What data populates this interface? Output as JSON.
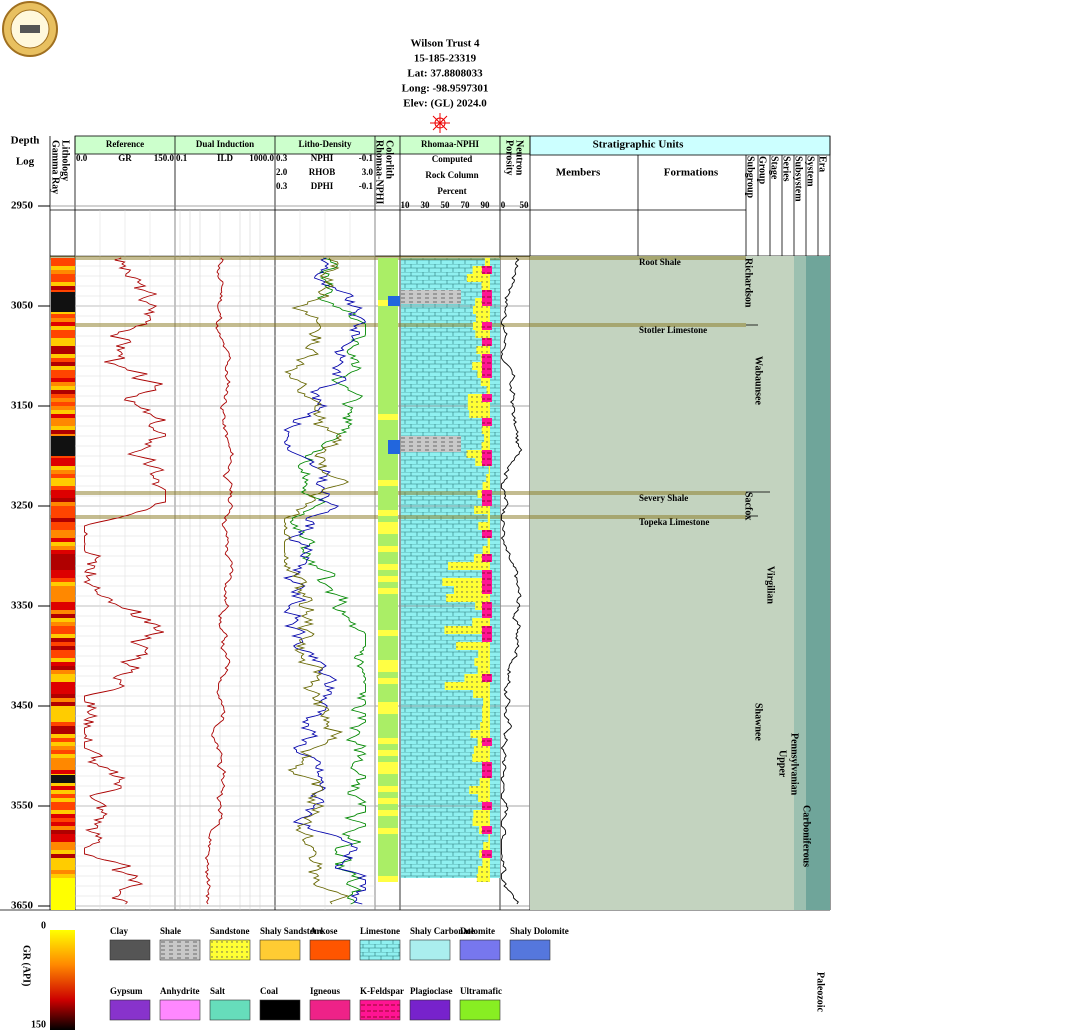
{
  "header": {
    "title": "Wilson Trust 4",
    "api": "15-185-23319",
    "lat": "Lat: 37.8808033",
    "long": "Long: -98.9597301",
    "elev": "Elev: (GL) 2024.0"
  },
  "depth": {
    "label": "Depth",
    "sublabel": "Log",
    "marks": [
      2950,
      3050,
      3150,
      3250,
      3350,
      3450,
      3550,
      3650
    ]
  },
  "tracks": {
    "lithology": "Lithology",
    "gamma": "Gamma Ray",
    "reference": {
      "title": "Reference",
      "left": "0.0",
      "curve": "GR",
      "right": "150.0"
    },
    "induction": {
      "title": "Dual Induction",
      "left": "0.1",
      "curve": "ILD",
      "right": "1000.0"
    },
    "density": {
      "title": "Litho-Density",
      "rows": [
        [
          "0.3",
          "NPHI",
          "-0.1"
        ],
        [
          "2.0",
          "RHOB",
          "3.0"
        ],
        [
          "0.3",
          "DPHI",
          "-0.1"
        ]
      ]
    },
    "colorlith": "Colorlith",
    "colorlith_sub": "Rhomaa-NPHI",
    "rhomaa": {
      "title": "Rhomaa-NPHI",
      "lines": [
        "Computed",
        "Rock Column",
        "Percent"
      ],
      "scale": [
        "10",
        "30",
        "50",
        "70",
        "90"
      ]
    },
    "neutron": {
      "title": "Neutron",
      "sub": "Porosity",
      "scale": [
        "0",
        "50"
      ]
    }
  },
  "strat": {
    "title": "Stratigraphic Units",
    "members": "Members",
    "formations": "Formations",
    "columns": [
      "Subgroup",
      "Group",
      "Stage",
      "Series",
      "Subsystem",
      "System",
      "Era"
    ],
    "formation_names": [
      "Root Shale",
      "Stotler Limestone",
      "Severy Shale",
      "Topeka Limestone"
    ],
    "units": [
      "Richardson",
      "Wabaunsee",
      "Sacfox",
      "Virgilian",
      "Shawnee",
      "Upper",
      "Pennsylvanian",
      "Carboniferous",
      "Paleozoic"
    ]
  },
  "legend": {
    "scale_title": "GR (API)",
    "scale_min": "0",
    "scale_max": "150",
    "items": [
      "Clay",
      "Shale",
      "Sandstone",
      "Shaly Sandstone",
      "Arkose",
      "Limestone",
      "Shaly Carbonate",
      "Dolomite",
      "Shaly Dolomite",
      "Gypsum",
      "Anhydrite",
      "Salt",
      "Coal",
      "Igneous",
      "K-Feldspar",
      "Plagioclase",
      "Ultramafic"
    ]
  }
}
